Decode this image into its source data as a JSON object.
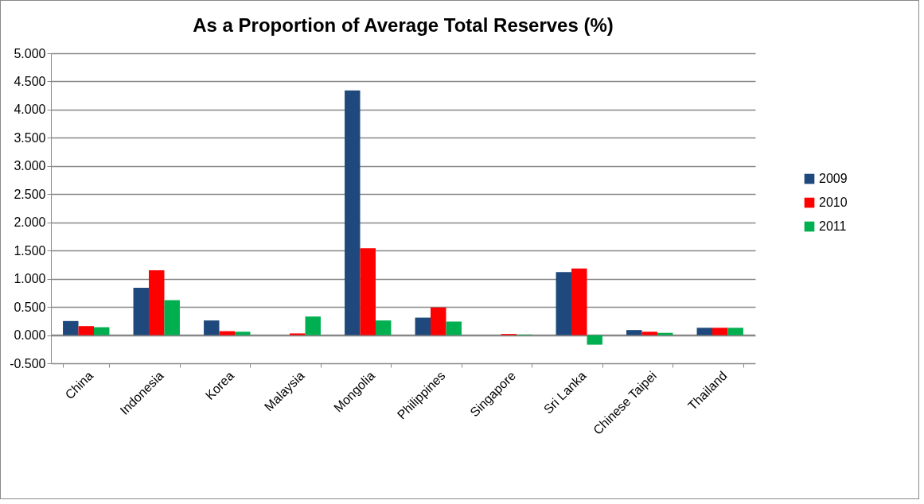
{
  "chart_data": {
    "type": "bar",
    "title": "As a Proportion of Average Total Reserves (%)",
    "categories": [
      "China",
      "Indonesia",
      "Korea",
      "Malaysia",
      "Mongolia",
      "Philippines",
      "Singapore",
      "Sri Lanka",
      "Chinese Taipei",
      "Thailand"
    ],
    "series": [
      {
        "name": "2009",
        "color": "#1f497d",
        "values": [
          0.25,
          0.84,
          0.26,
          0,
          4.34,
          0.31,
          0,
          1.12,
          0.09,
          0.13
        ]
      },
      {
        "name": "2010",
        "color": "#ff0000",
        "values": [
          0.16,
          1.15,
          0.07,
          0.03,
          1.54,
          0.49,
          0.02,
          1.18,
          0.06,
          0.13
        ]
      },
      {
        "name": "2011",
        "color": "#00b050",
        "values": [
          0.14,
          0.62,
          0.06,
          0.33,
          0.26,
          0.24,
          0.01,
          -0.17,
          0.04,
          0.13
        ]
      }
    ],
    "ylim": [
      -0.5,
      5
    ],
    "yticks": [
      {
        "value": -0.5,
        "label": "-0.500"
      },
      {
        "value": 0,
        "label": "0.000"
      },
      {
        "value": 0.5,
        "label": "0.500"
      },
      {
        "value": 1,
        "label": "1.000"
      },
      {
        "value": 1.5,
        "label": "1.500"
      },
      {
        "value": 2,
        "label": "2.000"
      },
      {
        "value": 2.5,
        "label": "2.500"
      },
      {
        "value": 3,
        "label": "3.000"
      },
      {
        "value": 3.5,
        "label": "3.500"
      },
      {
        "value": 4,
        "label": "4.000"
      },
      {
        "value": 4.5,
        "label": "4.500"
      },
      {
        "value": 5,
        "label": "5.000"
      }
    ],
    "grid": "y",
    "legend": "right"
  }
}
